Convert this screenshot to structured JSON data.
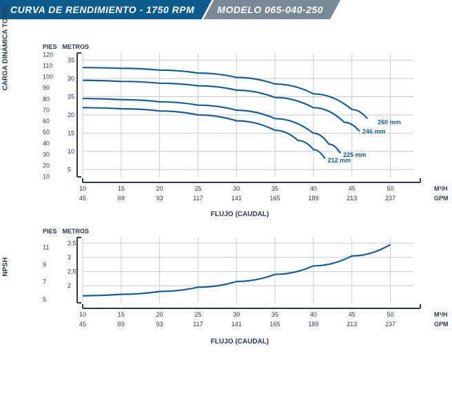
{
  "header": {
    "title": "CURVA DE RENDIMIENTO - 1750 RPM",
    "model": "MODELO 065-040-250"
  },
  "colors": {
    "brandBlue": "#0d5a8c",
    "modelGrey": "#7a8a95",
    "axis": "#2a3845",
    "grid": "#c5ced5",
    "curve": "#1a5c8f",
    "bg": "#ffffff"
  },
  "fonts": {
    "tick": 9,
    "label": 10,
    "header": 14
  },
  "xAxis": {
    "title": "FLUJO (CAUDAL)",
    "m3hLabel": "M³/H",
    "gpmLabel": "GPM",
    "m3hTicks": [
      10,
      15,
      20,
      25,
      30,
      35,
      40,
      45,
      50
    ],
    "gpmTicks": [
      45,
      69,
      93,
      117,
      141,
      165,
      189,
      213,
      237
    ],
    "xlim": [
      10,
      53
    ],
    "plotLeft": 60,
    "plotRight": 540
  },
  "chart1": {
    "yTitle": "CARGA DINÁMICA TOTAL",
    "piesLabel": "PIES",
    "metrosLabel": "METROS",
    "piesTicks": [
      10,
      20,
      30,
      40,
      50,
      60,
      70,
      80,
      90,
      100,
      110,
      120
    ],
    "metrosTicks": [
      5,
      10,
      15,
      20,
      25,
      30,
      35
    ],
    "ylim_m": [
      3,
      37
    ],
    "height": 180,
    "gridYm": [
      5,
      10,
      15,
      20,
      25,
      30,
      35
    ],
    "curves": [
      {
        "label": "260 mm",
        "lx": 48,
        "ly": 18,
        "pts": [
          [
            10,
            33
          ],
          [
            15,
            32.8
          ],
          [
            20,
            32.3
          ],
          [
            25,
            31.5
          ],
          [
            30,
            30.3
          ],
          [
            35,
            28.5
          ],
          [
            40,
            25.8
          ],
          [
            45,
            21.5
          ],
          [
            47,
            19
          ]
        ]
      },
      {
        "label": "246 mm",
        "lx": 46,
        "ly": 15.5,
        "pts": [
          [
            10,
            29.5
          ],
          [
            15,
            29.2
          ],
          [
            20,
            28.7
          ],
          [
            25,
            28
          ],
          [
            30,
            26.8
          ],
          [
            35,
            24.8
          ],
          [
            40,
            22
          ],
          [
            44,
            18
          ],
          [
            46,
            15.5
          ]
        ]
      },
      {
        "label": "225 mm",
        "lx": 43.5,
        "ly": 9,
        "pts": [
          [
            10,
            24.5
          ],
          [
            15,
            24.2
          ],
          [
            20,
            23.6
          ],
          [
            25,
            22.7
          ],
          [
            30,
            21.3
          ],
          [
            35,
            19
          ],
          [
            40,
            15
          ],
          [
            42,
            12
          ],
          [
            43.5,
            9.5
          ]
        ]
      },
      {
        "label": "212 mm",
        "lx": 41.5,
        "ly": 7.5,
        "pts": [
          [
            10,
            22
          ],
          [
            15,
            21.7
          ],
          [
            20,
            21.1
          ],
          [
            25,
            20
          ],
          [
            30,
            18.4
          ],
          [
            35,
            15.8
          ],
          [
            38,
            13
          ],
          [
            40,
            10.5
          ],
          [
            41.5,
            8
          ]
        ]
      }
    ]
  },
  "chart2": {
    "yTitle": "NPSH",
    "piesLabel": "PIES",
    "metrosLabel": "METROS",
    "piesTicks": [
      5,
      7,
      9,
      11
    ],
    "metrosTicks": [
      2.0,
      2.5,
      3.0,
      3.5
    ],
    "ylim_m": [
      1.4,
      3.7
    ],
    "height": 95,
    "gridYm": [
      2.0,
      2.5,
      3.0,
      3.5
    ],
    "curve": {
      "pts": [
        [
          10,
          1.65
        ],
        [
          15,
          1.7
        ],
        [
          20,
          1.8
        ],
        [
          25,
          1.95
        ],
        [
          30,
          2.15
        ],
        [
          35,
          2.4
        ],
        [
          40,
          2.7
        ],
        [
          45,
          3.05
        ],
        [
          50,
          3.45
        ]
      ]
    }
  }
}
